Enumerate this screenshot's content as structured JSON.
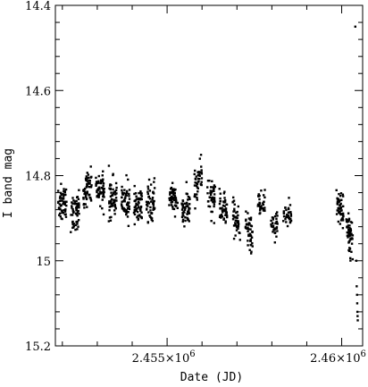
{
  "chart_data": {
    "type": "scatter",
    "title": "",
    "xlabel": "Date (JD)",
    "ylabel": "I band mag",
    "y_inverted": true,
    "xlim": [
      2451800,
      2460600
    ],
    "ylim": [
      14.4,
      15.2
    ],
    "yticks": [
      {
        "value": 14.4,
        "label": "14.4"
      },
      {
        "value": 14.6,
        "label": "14.6"
      },
      {
        "value": 14.8,
        "label": "14.8"
      },
      {
        "value": 15.0,
        "label": "15"
      },
      {
        "value": 15.2,
        "label": "15.2"
      }
    ],
    "xticks": [
      {
        "value": 2455000,
        "label_mantissa": "2.455×10",
        "label_exp": "6"
      },
      {
        "value": 2460000,
        "label_mantissa": "2.46×10",
        "label_exp": "6"
      }
    ],
    "grid": false,
    "legend": "none",
    "marker_color": "#000000",
    "seasons": [
      {
        "x_start": 2451880,
        "x_end": 2452120,
        "mean": 14.87,
        "spread": 0.028,
        "n": 55,
        "trend": 0.0
      },
      {
        "x_start": 2452240,
        "x_end": 2452480,
        "mean": 14.885,
        "spread": 0.03,
        "n": 55,
        "trend": 0.0
      },
      {
        "x_start": 2452600,
        "x_end": 2452840,
        "mean": 14.83,
        "spread": 0.026,
        "n": 55,
        "trend": -0.02
      },
      {
        "x_start": 2452960,
        "x_end": 2453200,
        "mean": 14.835,
        "spread": 0.026,
        "n": 55,
        "trend": 0.0
      },
      {
        "x_start": 2453330,
        "x_end": 2453570,
        "mean": 14.85,
        "spread": 0.028,
        "n": 55,
        "trend": 0.0
      },
      {
        "x_start": 2453690,
        "x_end": 2453930,
        "mean": 14.86,
        "spread": 0.028,
        "n": 55,
        "trend": 0.0
      },
      {
        "x_start": 2454050,
        "x_end": 2454290,
        "mean": 14.865,
        "spread": 0.03,
        "n": 55,
        "trend": 0.0
      },
      {
        "x_start": 2454410,
        "x_end": 2454650,
        "mean": 14.86,
        "spread": 0.028,
        "n": 55,
        "trend": 0.0
      },
      {
        "x_start": 2455060,
        "x_end": 2455300,
        "mean": 14.855,
        "spread": 0.026,
        "n": 55,
        "trend": 0.02
      },
      {
        "x_start": 2455420,
        "x_end": 2455650,
        "mean": 14.875,
        "spread": 0.028,
        "n": 55,
        "trend": 0.0
      },
      {
        "x_start": 2455780,
        "x_end": 2456000,
        "mean": 14.81,
        "spread": 0.024,
        "n": 45,
        "trend": -0.03
      },
      {
        "x_start": 2456150,
        "x_end": 2456380,
        "mean": 14.85,
        "spread": 0.03,
        "n": 45,
        "trend": 0.02
      },
      {
        "x_start": 2456500,
        "x_end": 2456740,
        "mean": 14.875,
        "spread": 0.025,
        "n": 45,
        "trend": 0.02
      },
      {
        "x_start": 2456880,
        "x_end": 2457090,
        "mean": 14.905,
        "spread": 0.025,
        "n": 45,
        "trend": 0.05
      },
      {
        "x_start": 2457240,
        "x_end": 2457450,
        "mean": 14.93,
        "spread": 0.025,
        "n": 45,
        "trend": 0.03
      },
      {
        "x_start": 2457600,
        "x_end": 2457800,
        "mean": 14.865,
        "spread": 0.02,
        "n": 35,
        "trend": 0.0
      },
      {
        "x_start": 2457960,
        "x_end": 2458170,
        "mean": 14.915,
        "spread": 0.022,
        "n": 35,
        "trend": 0.0
      },
      {
        "x_start": 2458320,
        "x_end": 2458560,
        "mean": 14.895,
        "spread": 0.02,
        "n": 35,
        "trend": 0.0
      },
      {
        "x_start": 2459850,
        "x_end": 2460050,
        "mean": 14.875,
        "spread": 0.03,
        "n": 50,
        "trend": 0.04
      },
      {
        "x_start": 2460130,
        "x_end": 2460320,
        "mean": 14.94,
        "spread": 0.028,
        "n": 55,
        "trend": 0.07
      }
    ],
    "points": [
      [
        2460390,
        14.45
      ],
      [
        2460420,
        15.0
      ],
      [
        2460430,
        15.06
      ],
      [
        2460440,
        15.08
      ],
      [
        2460445,
        15.1
      ],
      [
        2460450,
        15.12
      ],
      [
        2460455,
        15.13
      ],
      [
        2460460,
        15.14
      ]
    ]
  }
}
